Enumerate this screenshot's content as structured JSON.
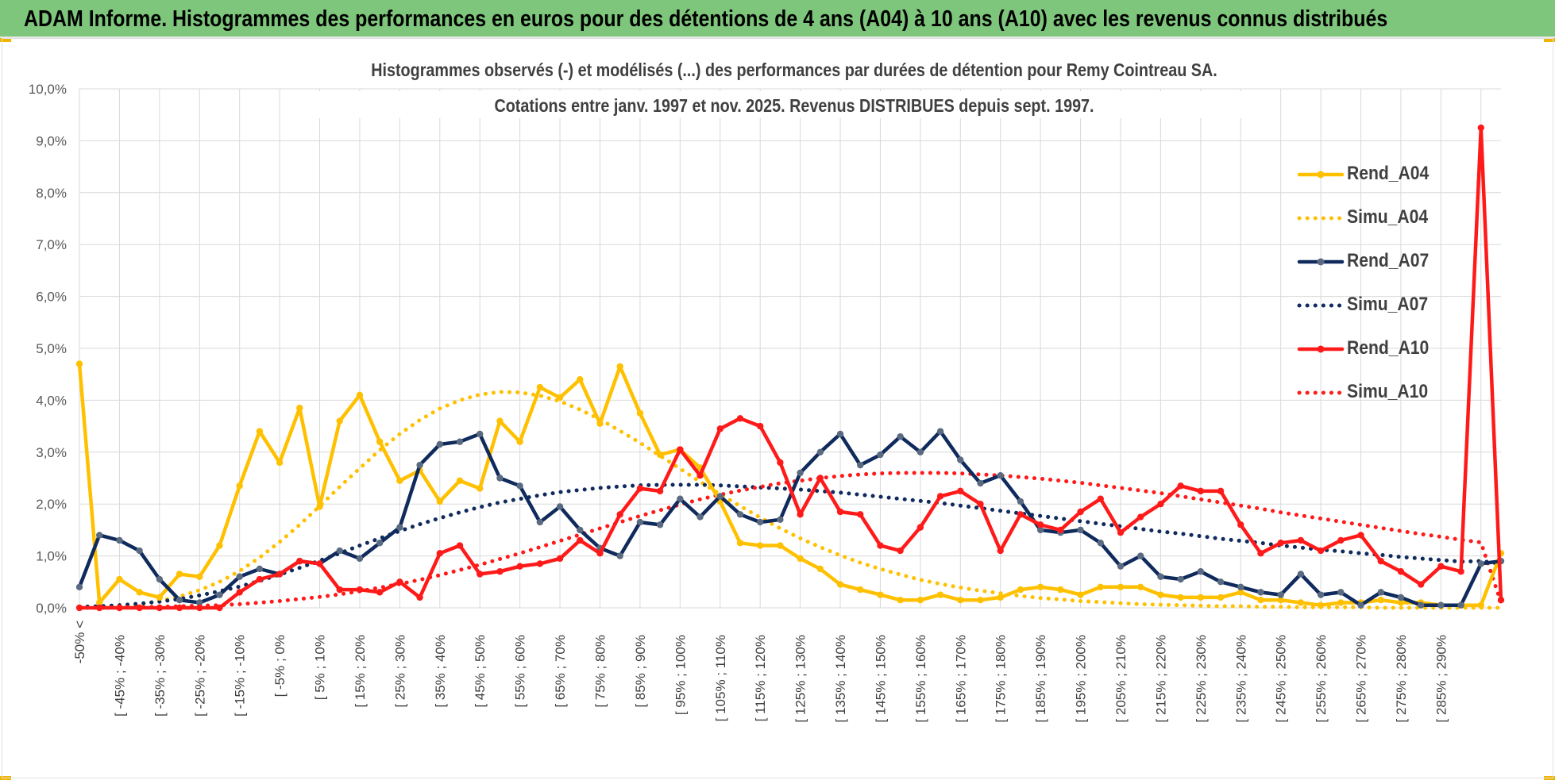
{
  "banner": {
    "title": "ADAM Informe. Histogrammes des performances en euros pour des détentions de 4 ans (A04) à 10 ans (A10) avec les revenus connus distribués"
  },
  "colors": {
    "banner_bg": "#7dc67b",
    "a04": "#ffc000",
    "a07": "#0f2a5c",
    "a07_marker": "#5a6a80",
    "a10": "#ff1a1a",
    "grid": "#d9d9d9"
  },
  "chart_data": {
    "type": "line",
    "title": "Histogrammes observés (-) et modélisés (...) des performances par durées de détention pour Remy Cointreau SA.",
    "subtitle": "Cotations entre janv. 1997 et nov. 2025. Revenus DISTRIBUES depuis sept. 1997.",
    "ylim": [
      0,
      10
    ],
    "yticks": [
      "0,0%",
      "1,0%",
      "2,0%",
      "3,0%",
      "4,0%",
      "5,0%",
      "6,0%",
      "7,0%",
      "8,0%",
      "9,0%",
      "10,0%"
    ],
    "grid": true,
    "legend_position": "right",
    "x_tick_labels": [
      "-50% <",
      "[ -45% ; -40%",
      "[ -35% ; -30%",
      "[ -25% ; -20%",
      "[ -15% ; -10%",
      "[ -5% ; 0%",
      "[ 5% ; 10%",
      "[ 15% ; 20%",
      "[ 25% ; 30%",
      "[ 35% ; 40%",
      "[ 45% ; 50%",
      "[ 55% ; 60%",
      "[ 65% ; 70%",
      "[ 75% ; 80%",
      "[ 85% ; 90%",
      "[ 95% ; 100%",
      "[ 105% ; 110%",
      "[ 115% ; 120%",
      "[ 125% ; 130%",
      "[ 135% ; 140%",
      "[ 145% ; 150%",
      "[ 155% ; 160%",
      "[ 165% ; 170%",
      "[ 175% ; 180%",
      "[ 185% ; 190%",
      "[ 195% ; 200%",
      "[ 205% ; 210%",
      "[ 215% ; 220%",
      "[ 225% ; 230%",
      "[ 235% ; 240%",
      "[ 245% ; 250%",
      "[ 255% ; 260%",
      "[ 265% ; 270%",
      "[ 275% ; 280%",
      "[ 285% ; 290%"
    ],
    "series": [
      {
        "name": "Rend_A04",
        "style": "solid",
        "color": "#ffc000",
        "marker_color": "#ffc000",
        "values": [
          4.7,
          0.1,
          0.55,
          0.3,
          0.2,
          0.65,
          0.6,
          1.2,
          2.35,
          3.4,
          2.8,
          3.85,
          1.95,
          3.6,
          4.1,
          3.2,
          2.45,
          2.65,
          2.05,
          2.45,
          2.3,
          3.6,
          3.2,
          4.25,
          4.05,
          4.4,
          3.55,
          4.65,
          3.75,
          2.95,
          3.05,
          2.7,
          2.05,
          1.25,
          1.2,
          1.2,
          0.95,
          0.75,
          0.45,
          0.35,
          0.25,
          0.15,
          0.15,
          0.25,
          0.15,
          0.15,
          0.2,
          0.35,
          0.4,
          0.35,
          0.25,
          0.4,
          0.4,
          0.4,
          0.25,
          0.2,
          0.2,
          0.2,
          0.3,
          0.15,
          0.15,
          0.1,
          0.05,
          0.1,
          0.1,
          0.15,
          0.1,
          0.1,
          0.05,
          0.05,
          0.05,
          1.05
        ]
      },
      {
        "name": "Simu_A04",
        "style": "dotted",
        "color": "#ffc000",
        "values": [
          0.01,
          0.02,
          0.04,
          0.07,
          0.13,
          0.22,
          0.34,
          0.5,
          0.71,
          0.97,
          1.27,
          1.6,
          1.96,
          2.33,
          2.69,
          3.04,
          3.35,
          3.62,
          3.84,
          4.0,
          4.11,
          4.16,
          4.15,
          4.09,
          3.98,
          3.82,
          3.63,
          3.41,
          3.18,
          2.93,
          2.68,
          2.43,
          2.19,
          1.96,
          1.74,
          1.53,
          1.34,
          1.17,
          1.01,
          0.87,
          0.75,
          0.64,
          0.54,
          0.46,
          0.39,
          0.33,
          0.28,
          0.23,
          0.19,
          0.16,
          0.13,
          0.11,
          0.09,
          0.07,
          0.06,
          0.05,
          0.04,
          0.03,
          0.03,
          0.02,
          0.02,
          0.01,
          0.01,
          0.01,
          0.01,
          0.0,
          0.0,
          0.0,
          0.0,
          0.0,
          0.0,
          0.0
        ]
      },
      {
        "name": "Rend_A07",
        "style": "solid",
        "color": "#0f2a5c",
        "marker_color": "#5a6a80",
        "values": [
          0.4,
          1.4,
          1.3,
          1.1,
          0.55,
          0.15,
          0.1,
          0.25,
          0.6,
          0.75,
          0.65,
          0.9,
          0.85,
          1.1,
          0.95,
          1.25,
          1.55,
          2.75,
          3.15,
          3.2,
          3.35,
          2.5,
          2.35,
          1.65,
          1.95,
          1.5,
          1.15,
          1.0,
          1.65,
          1.6,
          2.1,
          1.75,
          2.15,
          1.8,
          1.65,
          1.7,
          2.6,
          3.0,
          3.35,
          2.75,
          2.95,
          3.3,
          3.0,
          3.4,
          2.85,
          2.4,
          2.55,
          2.05,
          1.5,
          1.45,
          1.5,
          1.25,
          0.8,
          1.0,
          0.6,
          0.55,
          0.7,
          0.5,
          0.4,
          0.3,
          0.25,
          0.65,
          0.25,
          0.3,
          0.05,
          0.3,
          0.2,
          0.05,
          0.05,
          0.05,
          0.85,
          0.9
        ]
      },
      {
        "name": "Simu_A07",
        "style": "dotted",
        "color": "#0f2a5c",
        "values": [
          0.02,
          0.03,
          0.05,
          0.08,
          0.12,
          0.17,
          0.24,
          0.32,
          0.41,
          0.52,
          0.64,
          0.77,
          0.91,
          1.05,
          1.2,
          1.34,
          1.48,
          1.61,
          1.73,
          1.84,
          1.94,
          2.03,
          2.1,
          2.17,
          2.23,
          2.27,
          2.31,
          2.34,
          2.36,
          2.37,
          2.37,
          2.37,
          2.36,
          2.34,
          2.32,
          2.3,
          2.28,
          2.25,
          2.22,
          2.18,
          2.14,
          2.1,
          2.06,
          2.02,
          1.97,
          1.92,
          1.87,
          1.82,
          1.77,
          1.72,
          1.67,
          1.62,
          1.57,
          1.52,
          1.47,
          1.43,
          1.38,
          1.33,
          1.29,
          1.25,
          1.2,
          1.16,
          1.12,
          1.09,
          1.05,
          1.02,
          0.98,
          0.95,
          0.92,
          0.89,
          0.9,
          0.85
        ]
      },
      {
        "name": "Rend_A10",
        "style": "solid",
        "color": "#ff1a1a",
        "marker_color": "#ff1a1a",
        "values": [
          0.0,
          0.0,
          0.0,
          0.0,
          0.0,
          0.0,
          0.0,
          0.0,
          0.3,
          0.55,
          0.65,
          0.9,
          0.85,
          0.35,
          0.35,
          0.3,
          0.5,
          0.2,
          1.05,
          1.2,
          0.65,
          0.7,
          0.8,
          0.85,
          0.95,
          1.3,
          1.05,
          1.8,
          2.3,
          2.25,
          3.05,
          2.55,
          3.45,
          3.65,
          3.5,
          2.8,
          1.8,
          2.5,
          1.85,
          1.8,
          1.2,
          1.1,
          1.55,
          2.15,
          2.25,
          2.0,
          1.1,
          1.8,
          1.6,
          1.5,
          1.85,
          2.1,
          1.45,
          1.75,
          2.0,
          2.35,
          2.25,
          2.25,
          1.6,
          1.05,
          1.25,
          1.3,
          1.1,
          1.3,
          1.4,
          0.9,
          0.7,
          0.45,
          0.8,
          0.7,
          9.25,
          0.15
        ]
      },
      {
        "name": "Simu_A10",
        "style": "dotted",
        "color": "#ff1a1a",
        "values": [
          0.0,
          0.0,
          0.01,
          0.01,
          0.02,
          0.03,
          0.04,
          0.05,
          0.07,
          0.1,
          0.13,
          0.17,
          0.21,
          0.26,
          0.32,
          0.39,
          0.46,
          0.54,
          0.63,
          0.73,
          0.83,
          0.94,
          1.05,
          1.17,
          1.29,
          1.41,
          1.53,
          1.65,
          1.77,
          1.88,
          1.99,
          2.09,
          2.18,
          2.26,
          2.33,
          2.4,
          2.45,
          2.5,
          2.54,
          2.57,
          2.59,
          2.6,
          2.6,
          2.6,
          2.59,
          2.57,
          2.55,
          2.52,
          2.49,
          2.45,
          2.41,
          2.36,
          2.31,
          2.26,
          2.21,
          2.15,
          2.09,
          2.03,
          1.97,
          1.91,
          1.84,
          1.78,
          1.72,
          1.66,
          1.6,
          1.54,
          1.48,
          1.42,
          1.37,
          1.31,
          1.26,
          0.1
        ]
      }
    ]
  }
}
